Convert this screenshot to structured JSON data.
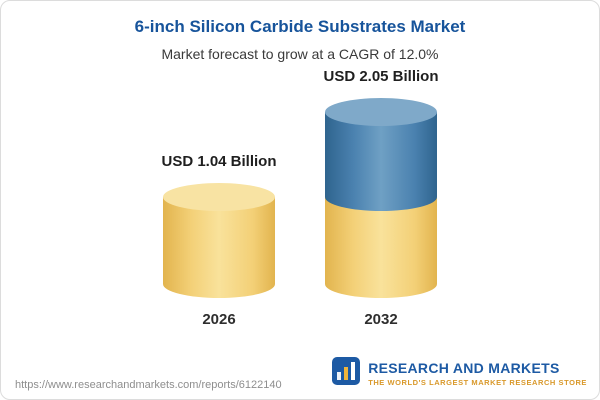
{
  "chart_data": {
    "type": "bar",
    "style": "stacked-cylinder",
    "title": "6-inch Silicon Carbide Substrates Market",
    "subtitle": "Market forecast to grow at a CAGR of 12.0%",
    "unit": "USD Billion",
    "cagr_percent": 12.0,
    "axes": "none",
    "legend": "none",
    "categories": [
      "2026",
      "2032"
    ],
    "totals": [
      1.04,
      2.05
    ],
    "bars": [
      {
        "year": "2026",
        "label": "USD 1.04 Billion",
        "total": 1.04,
        "segments": [
          {
            "name": "market-size-2026",
            "value": 1.04,
            "color": "gold"
          }
        ]
      },
      {
        "year": "2032",
        "label": "USD 2.05 Billion",
        "total": 2.05,
        "segments": [
          {
            "name": "base-2026",
            "value": 1.04,
            "color": "gold"
          },
          {
            "name": "growth-to-2032",
            "value": 1.01,
            "color": "blue"
          }
        ]
      }
    ],
    "colors": {
      "gold": {
        "edge": "#E2B44E",
        "body": "#F3D077",
        "light": "#F9E29B",
        "top": "#F8E3A3"
      },
      "blue": {
        "edge": "#2F648E",
        "body": "#4A81AF",
        "light": "#6FA0C4",
        "top": "#7FA9C9"
      }
    }
  },
  "theme": {
    "title_color": "#17549B",
    "logo_blue": "#1D5AA4",
    "logo_gold": "#D9992B"
  },
  "footer": {
    "url": "https://www.researchandmarkets.com/reports/6122140",
    "logo_name": "RESEARCH AND MARKETS",
    "logo_tagline": "THE WORLD'S LARGEST MARKET RESEARCH STORE"
  }
}
